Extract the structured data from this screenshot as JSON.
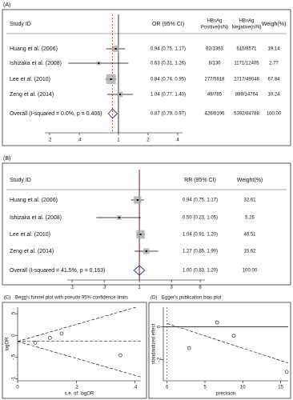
{
  "chart_data": [
    {
      "type": "forest",
      "label": "(A)",
      "header": {
        "study": "Study ID",
        "effect": "OR (95% CI)",
        "positive": [
          "HBsAg",
          "Positive(n/N)"
        ],
        "negative": [
          "HBsAg",
          "Negative(n/N)"
        ],
        "weight": "Weigh(%)"
      },
      "rows": [
        {
          "study": "Huang et al. (2006)",
          "estimate": 0.94,
          "lower": 0.75,
          "upper": 1.17,
          "ci_label": "0.94 (0.75, 1.17)",
          "positive": "92/1363",
          "negative": "615/8571",
          "weight": 19.14
        },
        {
          "study": "Ishizaka et al. (2008)",
          "estimate": 0.63,
          "lower": 0.31,
          "upper": 1.26,
          "ci_label": "0.63 (0.31, 1.26)",
          "positive": "8/130",
          "negative": "1171/12405",
          "weight": 2.77
        },
        {
          "study": "Lee et al. (2010)",
          "estimate": 0.84,
          "lower": 0.74,
          "upper": 0.95,
          "ci_label": "0.84 (0.74, 0.95)",
          "positive": "277/5918",
          "negative": "2717/49048",
          "weight": 67.84
        },
        {
          "study": "Zeng et al. (2014)",
          "estimate": 1.04,
          "lower": 0.77,
          "upper": 1.4,
          "ci_label": "1.04 (0.77, 1.40)",
          "positive": "49/785",
          "negative": "889/14764",
          "weight": 10.24
        }
      ],
      "overall": {
        "study": "Overall  (I-squared = 0.0%, p = 0.406)",
        "estimate": 0.87,
        "lower": 0.79,
        "upper": 0.97,
        "ci_label": "0.87 (0.79, 0.97)",
        "positive": "426/8196",
        "negative": "5392/84788",
        "weight": 100,
        "weight_label": "100.00"
      },
      "log_scale": true,
      "null_value": 1,
      "xlim": [
        0.2,
        4
      ],
      "xticks": [
        {
          "value": 0.2,
          "label": ".2"
        },
        {
          "value": 0.4,
          "label": ".4"
        },
        1,
        2,
        4
      ]
    },
    {
      "type": "forest",
      "label": "(B)",
      "header": {
        "study": "Study ID",
        "effect": "RR (95% CI)",
        "weight": "Weight(%)"
      },
      "rows": [
        {
          "study": "Huang et al. (2006)",
          "estimate": 0.94,
          "lower": 0.75,
          "upper": 1.17,
          "ci_label": "0.94 (0.75, 1.17)",
          "weight": 32.61
        },
        {
          "study": "Ishizaka et al. (2008)",
          "estimate": 0.5,
          "lower": 0.23,
          "upper": 1.05,
          "ci_label": "0.50 (0.23, 1.05)",
          "weight": 5.26
        },
        {
          "study": "Lee et al. (2010)",
          "estimate": 1.04,
          "lower": 0.91,
          "upper": 1.2,
          "ci_label": "1.04 (0.91, 1.20)",
          "weight": 46.51
        },
        {
          "study": "Zeng et al. (2014)",
          "estimate": 1.27,
          "lower": 0.85,
          "upper": 1.9,
          "ci_label": "1.27 (0.85, 1.90)",
          "weight": 15.62
        }
      ],
      "overall": {
        "study": "Overall  (I-squared = 41.5%, p = 0.163)",
        "estimate": 1,
        "lower": 0.83,
        "upper": 1.2,
        "ci_label": "1.00 (0.83, 1.20)",
        "weight": 100,
        "weight_label": "100.00"
      },
      "log_scale": true,
      "null_value": 1,
      "xlim": [
        0.1,
        8
      ],
      "xticks": [
        {
          "value": 0.1,
          "label": ".1"
        },
        {
          "value": 0.3,
          "label": ".3"
        },
        1,
        3,
        8
      ]
    },
    {
      "type": "funnel",
      "label": "(C)",
      "title": "Begg's funnel plot with pseudo 95% confidence limits",
      "x_label": "s.e. of: logOR",
      "y_label": "logOR",
      "x": [
        0.11,
        0.35,
        0.06,
        0.15
      ],
      "y": [
        -0.06,
        -0.46,
        -0.17,
        0.04
      ],
      "pooled": -0.14,
      "xlim": [
        0,
        0.42
      ],
      "ylim": [
        -1.05,
        0.65
      ],
      "xticks": [
        0,
        {
          "value": 0.2,
          "label": ".2"
        },
        {
          "value": 0.4,
          "label": ".4"
        }
      ],
      "yticks": [
        -1,
        {
          "value": -0.5,
          "label": "-.5"
        },
        0,
        {
          "value": 0.5,
          "label": ".5"
        }
      ]
    },
    {
      "type": "egger",
      "label": "(D)",
      "title": "Egger's publication bias plot",
      "x_label": "precision",
      "y_label": "standardized effect",
      "x": [
        8.8,
        2.9,
        15.8,
        6.6
      ],
      "y": [
        -0.55,
        -1.3,
        -2.75,
        0.27
      ],
      "xlim": [
        -0.5,
        16
      ],
      "ylim": [
        -3.3,
        1.2
      ],
      "xticks": [
        0,
        5,
        10,
        15
      ],
      "yticks": [
        -2,
        0
      ]
    }
  ]
}
